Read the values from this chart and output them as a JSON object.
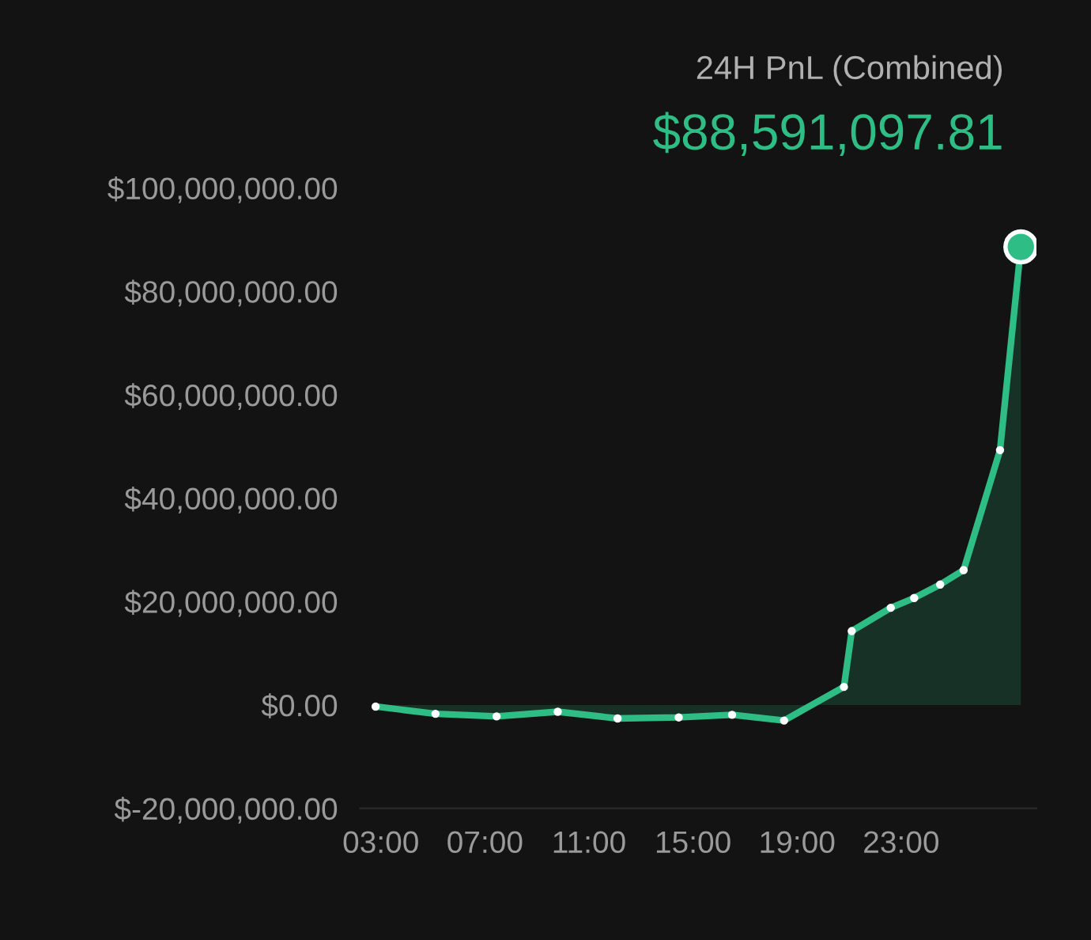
{
  "chart_data": {
    "type": "area",
    "title": "24H PnL (Combined)",
    "subtitle": "$88,591,097.81",
    "x": [
      2.8,
      5.1,
      7.45,
      9.8,
      12.1,
      14.45,
      16.5,
      18.5,
      20.8,
      21.1,
      22.6,
      23.5,
      24.5,
      25.4,
      26.8,
      27.6
    ],
    "series": [
      {
        "color": "#2ebd85",
        "values": [
          -300000,
          -1700000,
          -2200000,
          -1300000,
          -2600000,
          -2400000,
          -1900000,
          -3000000,
          3500000,
          14300000,
          18800000,
          20700000,
          23300000,
          26100000,
          49300000,
          88600000
        ]
      }
    ],
    "xlim": [
      2.2,
      28.2
    ],
    "ylim": [
      -20000000,
      100000000
    ],
    "xticks": [
      {
        "value": 3,
        "label": "03:00"
      },
      {
        "value": 7,
        "label": "07:00"
      },
      {
        "value": 11,
        "label": "11:00"
      },
      {
        "value": 15,
        "label": "15:00"
      },
      {
        "value": 19,
        "label": "19:00"
      },
      {
        "value": 23,
        "label": "23:00"
      }
    ],
    "yticks": [
      {
        "value": -20000000,
        "label": "$-20,000,000.00"
      },
      {
        "value": 0,
        "label": "$0.00"
      },
      {
        "value": 20000000,
        "label": "$20,000,000.00"
      },
      {
        "value": 40000000,
        "label": "$40,000,000.00"
      },
      {
        "value": 60000000,
        "label": "$60,000,000.00"
      },
      {
        "value": 80000000,
        "label": "$80,000,000.00"
      },
      {
        "value": 100000000,
        "label": "$100,000,000.00"
      }
    ],
    "marker": "circle",
    "grid": false,
    "legend": false
  }
}
